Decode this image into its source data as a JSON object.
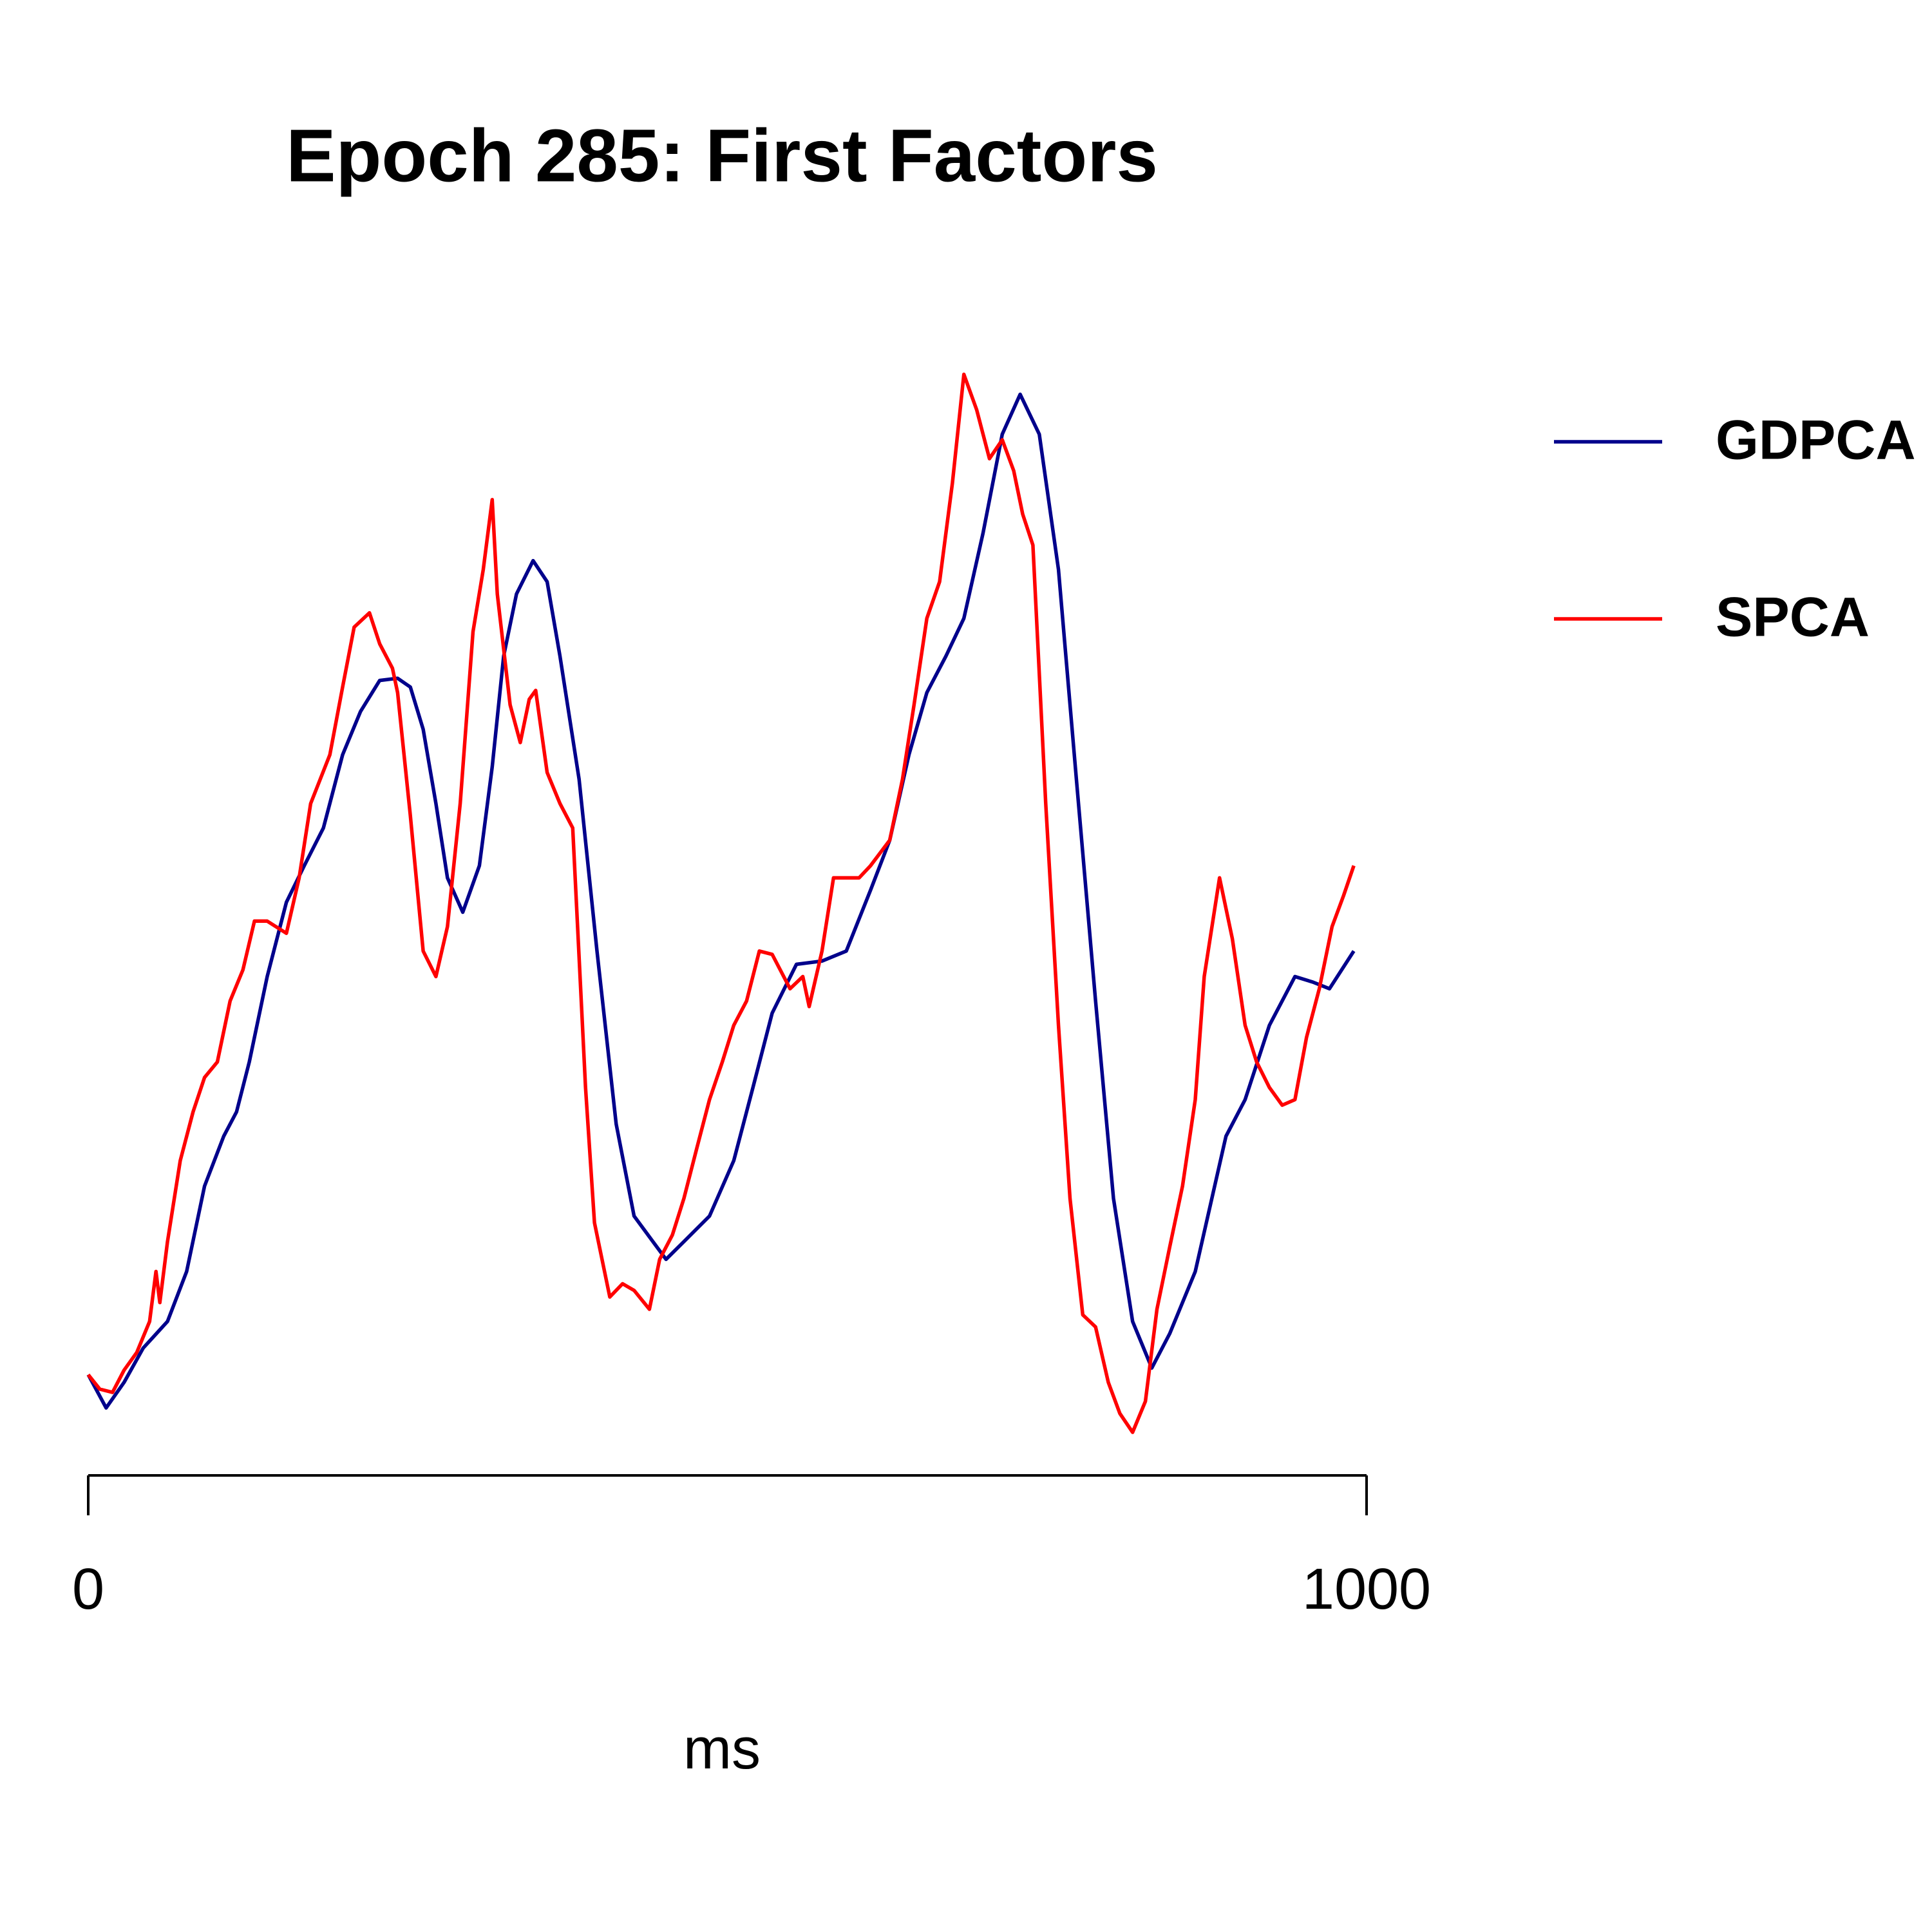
{
  "chart_data": {
    "type": "line",
    "title": "Epoch 285: First Factors",
    "x_label": "ms",
    "xlim": [
      0,
      1000
    ],
    "xticks": [
      0,
      1000
    ],
    "ylim": [
      0,
      100
    ],
    "legend": "right",
    "series": [
      {
        "name": "GDPCA",
        "color": "#00008b",
        "x": [
          0,
          14,
          28,
          43,
          62,
          77,
          91,
          106,
          116,
          126,
          140,
          155,
          169,
          184,
          199,
          213,
          228,
          242,
          252,
          262,
          272,
          281,
          293,
          306,
          316,
          325,
          335,
          348,
          359,
          369,
          384,
          398,
          413,
          427,
          452,
          466,
          486,
          505,
          520,
          535,
          554,
          574,
          593,
          612,
          627,
          642,
          656,
          671,
          685,
          700,
          715,
          729,
          744,
          759,
          773,
          788,
          802,
          817,
          832,
          846,
          866,
          890,
          905,
          924,
          944,
          958,
          971,
          990
        ],
        "values": [
          7.4,
          4.4,
          6.7,
          9.8,
          12.2,
          16.7,
          24.4,
          28.9,
          31.1,
          35.6,
          43.3,
          50,
          53.3,
          56.7,
          63.3,
          67.2,
          70,
          70.2,
          69.4,
          65.6,
          58.9,
          52.2,
          49.1,
          53.3,
          62.2,
          72.2,
          77.8,
          80.8,
          78.9,
          72.2,
          61.1,
          45.6,
          30,
          21.7,
          17.8,
          19.4,
          21.7,
          26.7,
          33.3,
          40,
          44.4,
          44.7,
          45.6,
          51.1,
          55.6,
          63.3,
          68.9,
          72.2,
          75.6,
          83.3,
          92.2,
          95.8,
          92.2,
          80,
          61.1,
          41.1,
          23.3,
          12.2,
          8,
          11.1,
          16.7,
          28.9,
          32.2,
          38.9,
          43.3,
          42.8,
          42.2,
          45.6
        ]
      },
      {
        "name": "SPCA",
        "color": "#ff0000",
        "x": [
          0,
          9,
          19,
          28,
          38,
          48,
          53,
          56,
          62,
          72,
          82,
          91,
          101,
          111,
          121,
          130,
          140,
          155,
          165,
          174,
          189,
          199,
          208,
          220,
          228,
          238,
          242,
          252,
          262,
          272,
          281,
          291,
          301,
          309,
          316,
          320,
          330,
          338,
          345,
          350,
          359,
          369,
          379,
          389,
          396,
          408,
          418,
          427,
          439,
          447,
          457,
          466,
          476,
          486,
          496,
          505,
          515,
          525,
          535,
          549,
          559,
          564,
          574,
          583,
          593,
          603,
          612,
          627,
          637,
          646,
          656,
          666,
          676,
          685,
          695,
          705,
          715,
          724,
          731,
          739,
          749,
          759,
          768,
          778,
          788,
          798,
          807,
          817,
          827,
          836,
          846,
          856,
          866,
          873,
          885,
          895,
          905,
          914,
          924,
          934,
          944,
          953,
          963,
          973,
          982,
          990
        ],
        "values": [
          7.4,
          6.1,
          5.8,
          7.8,
          9.4,
          12.2,
          16.7,
          13.9,
          19.4,
          26.7,
          31.1,
          34.2,
          35.6,
          41.1,
          43.9,
          48.3,
          48.3,
          47.2,
          52.2,
          58.9,
          63.3,
          69.4,
          74.8,
          76.1,
          73.3,
          71.1,
          68.9,
          57.8,
          45.6,
          43.3,
          47.8,
          58.9,
          74.4,
          80,
          86.3,
          77.8,
          67.8,
          64.4,
          68.3,
          69.1,
          61.7,
          58.9,
          56.7,
          33.3,
          21.1,
          14.4,
          15.6,
          15,
          13.3,
          17.8,
          20,
          23.3,
          27.8,
          32.2,
          35.6,
          38.9,
          41.1,
          45.6,
          45.3,
          42.2,
          43.3,
          40.6,
          45.6,
          52.2,
          52.2,
          52.2,
          53.3,
          55.6,
          61.1,
          67.8,
          75.6,
          78.9,
          87.8,
          97.6,
          94.4,
          90,
          91.7,
          88.9,
          85,
          82.2,
          58.9,
          38.9,
          23.3,
          12.8,
          11.7,
          6.7,
          3.9,
          2.2,
          5,
          13.3,
          18.9,
          24.4,
          32.2,
          43.3,
          52.2,
          46.7,
          38.9,
          35.6,
          33.3,
          31.7,
          32.2,
          37.8,
          42.2,
          47.8,
          50.6,
          53.3
        ]
      }
    ]
  }
}
